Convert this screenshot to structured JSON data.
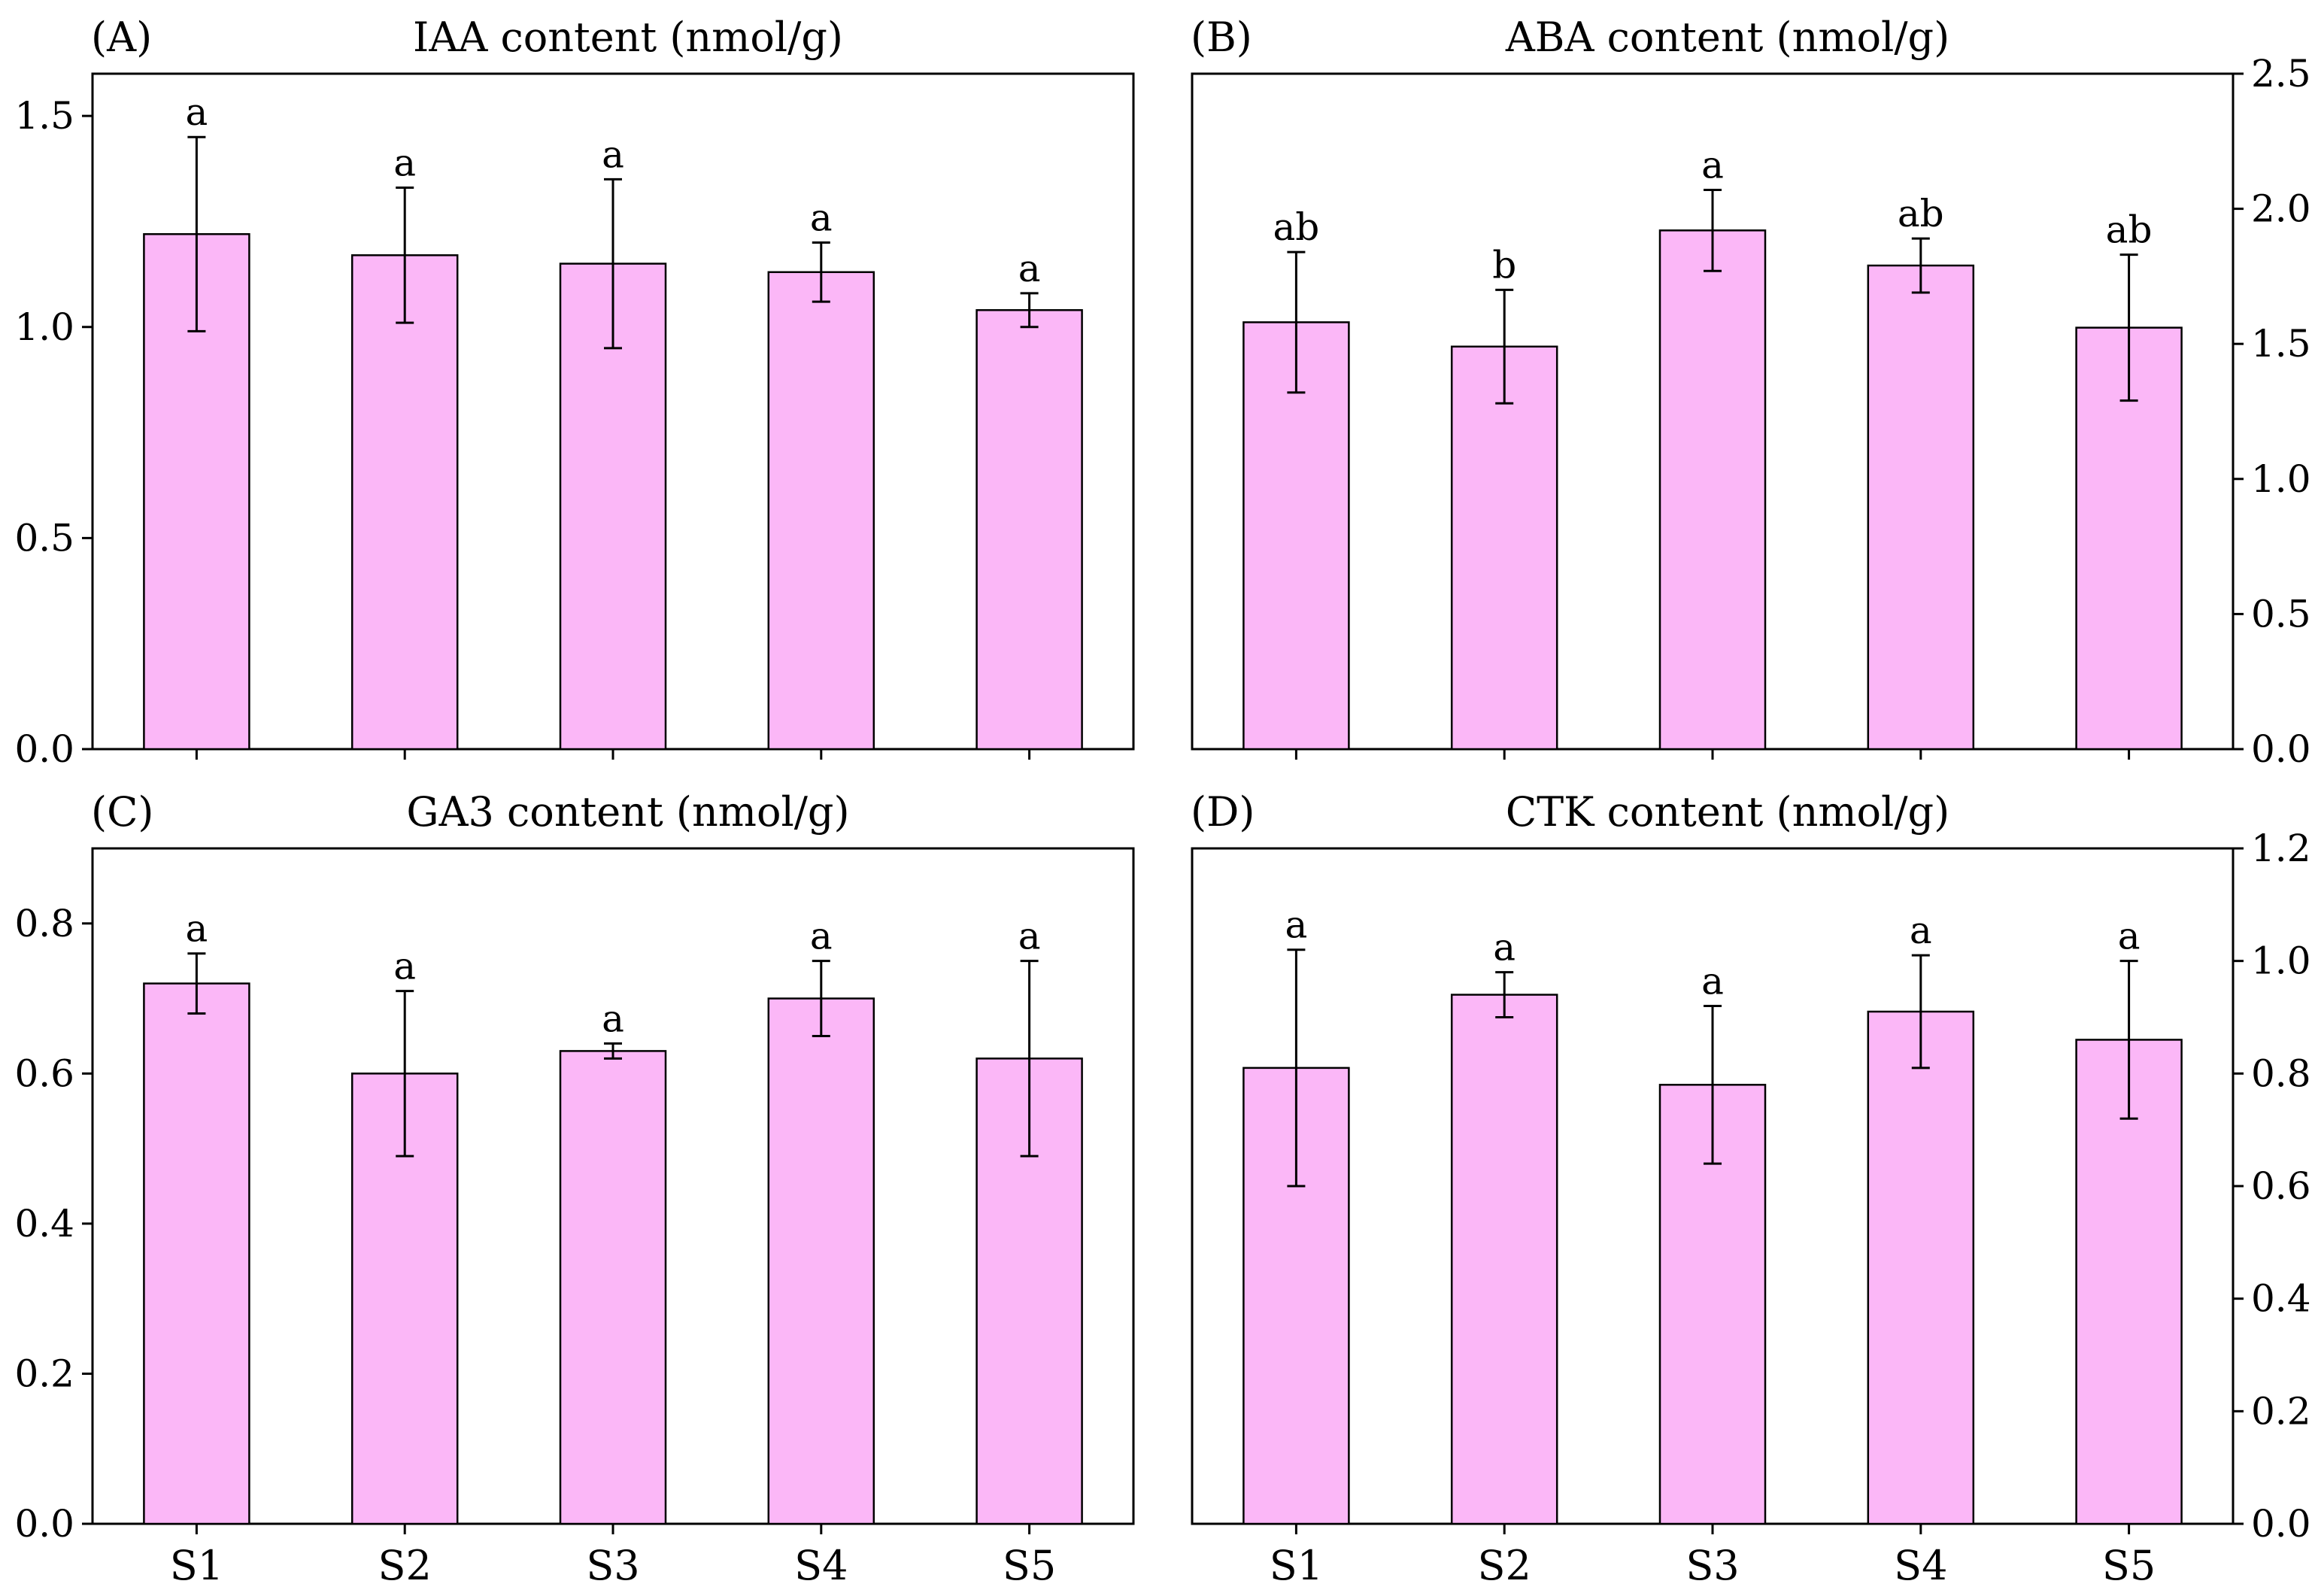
{
  "figure_description": "Hormone content of samples S1-S5",
  "chart_data": [
    {
      "type": "bar",
      "panel_label": "(A)",
      "title": "IAA content",
      "units": "(nmol/g)",
      "categories": [
        "S1",
        "S2",
        "S3",
        "S4",
        "S5"
      ],
      "values": [
        1.22,
        1.17,
        1.15,
        1.13,
        1.04
      ],
      "errors": [
        0.23,
        0.16,
        0.2,
        0.07,
        0.04
      ],
      "significance": [
        "a",
        "a",
        "a",
        "a",
        "a"
      ],
      "ylim": [
        0,
        1.6
      ],
      "yticks": [
        0.0,
        0.5,
        1.0,
        1.5
      ],
      "ytick_labels": [
        "0.0",
        "0.5",
        "1.0",
        "1.5"
      ],
      "yaxis_side": "left",
      "show_xticklabels": false,
      "bar_color": "#fbb7f7"
    },
    {
      "type": "bar",
      "panel_label": "(B)",
      "title": "ABA content",
      "units": "(nmol/g)",
      "categories": [
        "S1",
        "S2",
        "S3",
        "S4",
        "S5"
      ],
      "values": [
        1.58,
        1.49,
        1.92,
        1.79,
        1.56
      ],
      "errors": [
        0.26,
        0.21,
        0.15,
        0.1,
        0.27
      ],
      "significance": [
        "ab",
        "b",
        "a",
        "ab",
        "ab"
      ],
      "ylim": [
        0,
        2.5
      ],
      "yticks": [
        0.0,
        0.5,
        1.0,
        1.5,
        2.0,
        2.5
      ],
      "ytick_labels": [
        "0.0",
        "0.5",
        "1.0",
        "1.5",
        "2.0",
        "2.5"
      ],
      "yaxis_side": "right",
      "show_xticklabels": false,
      "bar_color": "#fbb7f7"
    },
    {
      "type": "bar",
      "panel_label": "(C)",
      "title": "GA3 content",
      "units": "(nmol/g)",
      "categories": [
        "S1",
        "S2",
        "S3",
        "S4",
        "S5"
      ],
      "values": [
        0.72,
        0.6,
        0.63,
        0.7,
        0.62
      ],
      "errors": [
        0.04,
        0.11,
        0.01,
        0.05,
        0.13
      ],
      "significance": [
        "a",
        "a",
        "a",
        "a",
        "a"
      ],
      "ylim": [
        0,
        0.9
      ],
      "yticks": [
        0.0,
        0.2,
        0.4,
        0.6,
        0.8
      ],
      "ytick_labels": [
        "0.0",
        "0.2",
        "0.4",
        "0.6",
        "0.8"
      ],
      "yaxis_side": "left",
      "show_xticklabels": true,
      "bar_color": "#fbb7f7"
    },
    {
      "type": "bar",
      "panel_label": "(D)",
      "title": "CTK content",
      "units": "(nmol/g)",
      "categories": [
        "S1",
        "S2",
        "S3",
        "S4",
        "S5"
      ],
      "values": [
        0.81,
        0.94,
        0.78,
        0.91,
        0.86
      ],
      "errors": [
        0.21,
        0.04,
        0.14,
        0.1,
        0.14
      ],
      "significance": [
        "a",
        "a",
        "a",
        "a",
        "a"
      ],
      "ylim": [
        0,
        1.2
      ],
      "yticks": [
        0.0,
        0.2,
        0.4,
        0.6,
        0.8,
        1.0,
        1.2
      ],
      "ytick_labels": [
        "0.0",
        "0.2",
        "0.4",
        "0.6",
        "0.8",
        "1.0",
        "1.2"
      ],
      "yaxis_side": "right",
      "show_xticklabels": true,
      "bar_color": "#fbb7f7"
    }
  ]
}
